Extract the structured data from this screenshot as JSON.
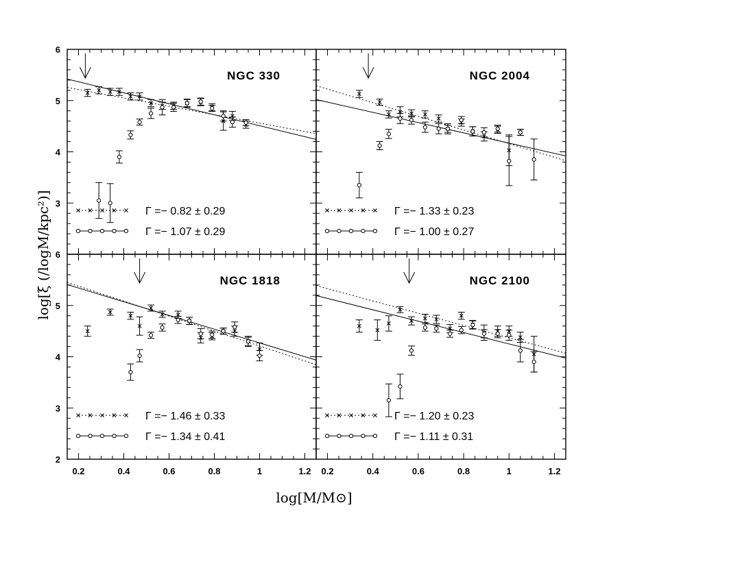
{
  "figure": {
    "xlabel": "log[M/M⊙]",
    "ylabel": "log[ξ (/logM/kpc²)]"
  },
  "chart_data": [
    {
      "type": "scatter",
      "title": "NGC 330",
      "xlim": [
        0.15,
        1.25
      ],
      "ylim": [
        2,
        6
      ],
      "x_ticks": [
        0.2,
        0.4,
        0.6,
        0.8,
        1,
        1.2
      ],
      "y_ticks": [
        3,
        4,
        5,
        6
      ],
      "arrow_x": 0.23,
      "series": [
        {
          "marker": "cross",
          "line": "dotted",
          "legend": "Γ =− 0.82  ±  0.29",
          "fit": {
            "slope": -0.82,
            "intercept": 5.38
          },
          "points": [
            {
              "x": 0.24,
              "y": 5.15,
              "err": 0.07
            },
            {
              "x": 0.29,
              "y": 5.2,
              "err": 0.07
            },
            {
              "x": 0.34,
              "y": 5.17,
              "err": 0.07
            },
            {
              "x": 0.38,
              "y": 5.17,
              "err": 0.07
            },
            {
              "x": 0.43,
              "y": 5.08,
              "err": 0.07
            },
            {
              "x": 0.47,
              "y": 5.08,
              "err": 0.07
            },
            {
              "x": 0.52,
              "y": 4.95,
              "err": 0.07
            },
            {
              "x": 0.57,
              "y": 4.9,
              "err": 0.07
            },
            {
              "x": 0.62,
              "y": 4.9,
              "err": 0.07
            },
            {
              "x": 0.68,
              "y": 4.95,
              "err": 0.07
            },
            {
              "x": 0.74,
              "y": 4.97,
              "err": 0.07
            },
            {
              "x": 0.79,
              "y": 4.87,
              "err": 0.07
            },
            {
              "x": 0.84,
              "y": 4.6,
              "err": 0.18
            },
            {
              "x": 0.88,
              "y": 4.7,
              "err": 0.09
            },
            {
              "x": 0.94,
              "y": 4.53,
              "err": 0.07
            }
          ]
        },
        {
          "marker": "circle",
          "line": "solid",
          "legend": "Γ =− 1.07  ±  0.29",
          "fit": {
            "slope": -1.07,
            "intercept": 5.58
          },
          "points": [
            {
              "x": 0.29,
              "y": 3.05,
              "err": 0.35
            },
            {
              "x": 0.34,
              "y": 3.0,
              "err": 0.38
            },
            {
              "x": 0.38,
              "y": 3.9,
              "err": 0.12
            },
            {
              "x": 0.43,
              "y": 4.33,
              "err": 0.08
            },
            {
              "x": 0.47,
              "y": 4.58,
              "err": 0.06
            },
            {
              "x": 0.52,
              "y": 4.75,
              "err": 0.1
            },
            {
              "x": 0.57,
              "y": 4.87,
              "err": 0.15
            },
            {
              "x": 0.62,
              "y": 4.87,
              "err": 0.08
            },
            {
              "x": 0.68,
              "y": 4.95,
              "err": 0.08
            },
            {
              "x": 0.74,
              "y": 4.98,
              "err": 0.07
            },
            {
              "x": 0.79,
              "y": 4.85,
              "err": 0.06
            },
            {
              "x": 0.84,
              "y": 4.7,
              "err": 0.1
            },
            {
              "x": 0.88,
              "y": 4.58,
              "err": 0.1
            },
            {
              "x": 0.94,
              "y": 4.57,
              "err": 0.06
            }
          ]
        }
      ]
    },
    {
      "type": "scatter",
      "title": "NGC 2004",
      "xlim": [
        0.15,
        1.25
      ],
      "ylim": [
        2,
        6
      ],
      "x_ticks": [
        0.2,
        0.4,
        0.6,
        0.8,
        1,
        1.2
      ],
      "y_ticks": [
        3,
        4,
        5,
        6
      ],
      "arrow_x": 0.38,
      "series": [
        {
          "marker": "cross",
          "line": "dotted",
          "legend": "Γ =− 1.33  ±  0.23",
          "fit": {
            "slope": -1.33,
            "intercept": 5.49
          },
          "points": [
            {
              "x": 0.34,
              "y": 5.13,
              "err": 0.07
            },
            {
              "x": 0.43,
              "y": 4.97,
              "err": 0.06
            },
            {
              "x": 0.47,
              "y": 4.73,
              "err": 0.07
            },
            {
              "x": 0.52,
              "y": 4.78,
              "err": 0.1
            },
            {
              "x": 0.57,
              "y": 4.75,
              "err": 0.07
            },
            {
              "x": 0.63,
              "y": 4.73,
              "err": 0.07
            },
            {
              "x": 0.69,
              "y": 4.65,
              "err": 0.07
            },
            {
              "x": 0.73,
              "y": 4.45,
              "err": 0.07
            },
            {
              "x": 0.79,
              "y": 4.57,
              "err": 0.07
            },
            {
              "x": 0.84,
              "y": 4.4,
              "err": 0.09
            },
            {
              "x": 0.89,
              "y": 4.3,
              "err": 0.09
            },
            {
              "x": 0.95,
              "y": 4.43,
              "err": 0.07
            },
            {
              "x": 1.0,
              "y": 4.03,
              "err": 0.3
            },
            {
              "x": 1.05,
              "y": 4.38,
              "err": 0.06
            }
          ]
        },
        {
          "marker": "circle",
          "line": "solid",
          "legend": "Γ =− 1.00  ±  0.27",
          "fit": {
            "slope": -1.0,
            "intercept": 5.17
          },
          "points": [
            {
              "x": 0.34,
              "y": 3.35,
              "err": 0.25
            },
            {
              "x": 0.43,
              "y": 4.12,
              "err": 0.08
            },
            {
              "x": 0.47,
              "y": 4.35,
              "err": 0.09
            },
            {
              "x": 0.52,
              "y": 4.65,
              "err": 0.1
            },
            {
              "x": 0.57,
              "y": 4.62,
              "err": 0.08
            },
            {
              "x": 0.63,
              "y": 4.48,
              "err": 0.1
            },
            {
              "x": 0.69,
              "y": 4.45,
              "err": 0.1
            },
            {
              "x": 0.73,
              "y": 4.45,
              "err": 0.1
            },
            {
              "x": 0.79,
              "y": 4.62,
              "err": 0.07
            },
            {
              "x": 0.84,
              "y": 4.4,
              "err": 0.09
            },
            {
              "x": 0.89,
              "y": 4.38,
              "err": 0.09
            },
            {
              "x": 0.95,
              "y": 4.45,
              "err": 0.07
            },
            {
              "x": 1.0,
              "y": 3.82,
              "err": 0.48
            },
            {
              "x": 1.05,
              "y": 4.38,
              "err": 0.06
            },
            {
              "x": 1.11,
              "y": 3.85,
              "err": 0.4
            }
          ]
        }
      ]
    },
    {
      "type": "scatter",
      "title": "NGC 1818",
      "xlim": [
        0.15,
        1.25
      ],
      "ylim": [
        2,
        6
      ],
      "x_ticks": [
        0.2,
        0.4,
        0.6,
        0.8,
        1,
        1.2
      ],
      "y_ticks": [
        2,
        3,
        4,
        5,
        6
      ],
      "arrow_x": 0.47,
      "series": [
        {
          "marker": "cross",
          "line": "dotted",
          "legend": "Γ =− 1.46  ±  0.33",
          "fit": {
            "slope": -1.46,
            "intercept": 5.67
          },
          "points": [
            {
              "x": 0.24,
              "y": 4.5,
              "err": 0.1
            },
            {
              "x": 0.34,
              "y": 4.87,
              "err": 0.06
            },
            {
              "x": 0.43,
              "y": 4.8,
              "err": 0.07
            },
            {
              "x": 0.47,
              "y": 4.6,
              "err": 0.18
            },
            {
              "x": 0.52,
              "y": 4.95,
              "err": 0.06
            },
            {
              "x": 0.57,
              "y": 4.83,
              "err": 0.06
            },
            {
              "x": 0.64,
              "y": 4.82,
              "err": 0.07
            },
            {
              "x": 0.69,
              "y": 4.7,
              "err": 0.07
            },
            {
              "x": 0.74,
              "y": 4.37,
              "err": 0.1
            },
            {
              "x": 0.79,
              "y": 4.4,
              "err": 0.07
            },
            {
              "x": 0.84,
              "y": 4.5,
              "err": 0.06
            },
            {
              "x": 0.89,
              "y": 4.5,
              "err": 0.1
            },
            {
              "x": 0.95,
              "y": 4.3,
              "err": 0.1
            },
            {
              "x": 1.0,
              "y": 4.15,
              "err": 0.12
            }
          ]
        },
        {
          "marker": "circle",
          "line": "solid",
          "legend": "Γ =− 1.34  ±  0.41",
          "fit": {
            "slope": -1.34,
            "intercept": 5.61
          },
          "points": [
            {
              "x": 0.43,
              "y": 3.7,
              "err": 0.16
            },
            {
              "x": 0.47,
              "y": 4.02,
              "err": 0.12
            },
            {
              "x": 0.52,
              "y": 4.42,
              "err": 0.06
            },
            {
              "x": 0.57,
              "y": 4.57,
              "err": 0.07
            },
            {
              "x": 0.64,
              "y": 4.72,
              "err": 0.07
            },
            {
              "x": 0.69,
              "y": 4.7,
              "err": 0.07
            },
            {
              "x": 0.74,
              "y": 4.45,
              "err": 0.1
            },
            {
              "x": 0.79,
              "y": 4.43,
              "err": 0.07
            },
            {
              "x": 0.84,
              "y": 4.5,
              "err": 0.06
            },
            {
              "x": 0.89,
              "y": 4.58,
              "err": 0.1
            },
            {
              "x": 0.95,
              "y": 4.3,
              "err": 0.08
            },
            {
              "x": 1.0,
              "y": 4.02,
              "err": 0.1
            }
          ]
        }
      ]
    },
    {
      "type": "scatter",
      "title": "NGC 2100",
      "xlim": [
        0.15,
        1.25
      ],
      "ylim": [
        2,
        6
      ],
      "x_ticks": [
        0.2,
        0.4,
        0.6,
        0.8,
        1,
        1.2
      ],
      "y_ticks": [
        2,
        3,
        4,
        5,
        6
      ],
      "arrow_x": 0.56,
      "series": [
        {
          "marker": "cross",
          "line": "dotted",
          "legend": "Γ =− 1.20  ±  0.23",
          "fit": {
            "slope": -1.2,
            "intercept": 5.57
          },
          "points": [
            {
              "x": 0.34,
              "y": 4.6,
              "err": 0.12
            },
            {
              "x": 0.42,
              "y": 4.52,
              "err": 0.2
            },
            {
              "x": 0.47,
              "y": 4.65,
              "err": 0.15
            },
            {
              "x": 0.52,
              "y": 4.92,
              "err": 0.06
            },
            {
              "x": 0.57,
              "y": 4.7,
              "err": 0.08
            },
            {
              "x": 0.63,
              "y": 4.75,
              "err": 0.08
            },
            {
              "x": 0.68,
              "y": 4.73,
              "err": 0.08
            },
            {
              "x": 0.74,
              "y": 4.55,
              "err": 0.08
            },
            {
              "x": 0.79,
              "y": 4.8,
              "err": 0.07
            },
            {
              "x": 0.84,
              "y": 4.63,
              "err": 0.08
            },
            {
              "x": 0.89,
              "y": 4.47,
              "err": 0.15
            },
            {
              "x": 0.95,
              "y": 4.5,
              "err": 0.1
            },
            {
              "x": 1.0,
              "y": 4.5,
              "err": 0.1
            },
            {
              "x": 1.05,
              "y": 4.38,
              "err": 0.1
            },
            {
              "x": 1.11,
              "y": 4.05,
              "err": 0.35
            }
          ]
        },
        {
          "marker": "circle",
          "line": "solid",
          "legend": "Γ =− 1.11  ±  0.31",
          "fit": {
            "slope": -1.11,
            "intercept": 5.36
          },
          "points": [
            {
              "x": 0.47,
              "y": 3.15,
              "err": 0.32
            },
            {
              "x": 0.52,
              "y": 3.42,
              "err": 0.24
            },
            {
              "x": 0.57,
              "y": 4.12,
              "err": 0.09
            },
            {
              "x": 0.63,
              "y": 4.57,
              "err": 0.07
            },
            {
              "x": 0.68,
              "y": 4.55,
              "err": 0.07
            },
            {
              "x": 0.74,
              "y": 4.45,
              "err": 0.07
            },
            {
              "x": 0.79,
              "y": 4.52,
              "err": 0.07
            },
            {
              "x": 0.84,
              "y": 4.62,
              "err": 0.08
            },
            {
              "x": 0.89,
              "y": 4.45,
              "err": 0.08
            },
            {
              "x": 0.95,
              "y": 4.45,
              "err": 0.08
            },
            {
              "x": 1.0,
              "y": 4.42,
              "err": 0.1
            },
            {
              "x": 1.05,
              "y": 4.12,
              "err": 0.22
            },
            {
              "x": 1.11,
              "y": 3.9,
              "err": 0.2
            }
          ]
        }
      ]
    }
  ]
}
